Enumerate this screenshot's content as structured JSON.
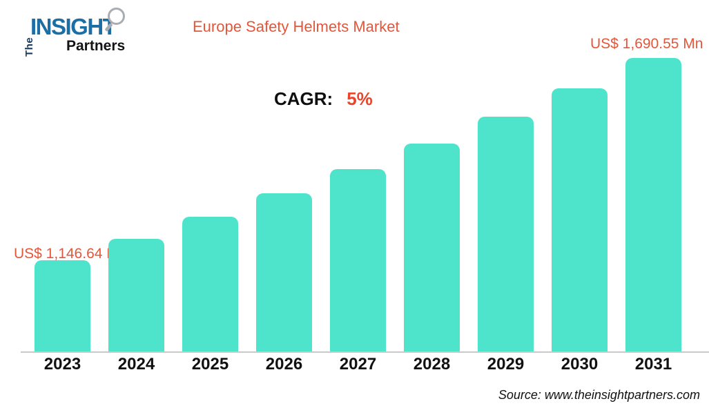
{
  "logo": {
    "the": "The",
    "insight": "INSIGHT",
    "partners": "Partners",
    "colors": {
      "the": "#16395c",
      "insight": "#1d6ea5",
      "partners": "#141414"
    }
  },
  "header": {
    "title": "Europe Safety Helmets Market",
    "title_color": "#e2573b"
  },
  "cagr": {
    "label": "CAGR:",
    "value": "5%"
  },
  "annotations": {
    "first_bar_value_label": "US$ 1,146.64 Mn",
    "last_bar_value_label": "US$ 1,690.55 Mn"
  },
  "source": {
    "text": "Source: www.theinsightpartners.com"
  },
  "chart_data": {
    "type": "bar",
    "title": "Europe Safety Helmets Market",
    "categories": [
      "2023",
      "2024",
      "2025",
      "2026",
      "2027",
      "2028",
      "2029",
      "2030",
      "2031"
    ],
    "values": [
      1146.64,
      1203.59,
      1263.37,
      1326.12,
      1391.99,
      1461.13,
      1533.7,
      1609.88,
      1690.55
    ],
    "unit": "US$ Mn",
    "cagr": "5%",
    "labeled_points": {
      "2023": "US$ 1,146.64 Mn",
      "2031": "US$ 1,690.55 Mn"
    },
    "xlabel": "",
    "ylabel": "",
    "ylim": [
      900,
      1700
    ],
    "grid": false,
    "legend": "none",
    "bar_color": "#4de4cb",
    "accent_color": "#e2573b"
  }
}
